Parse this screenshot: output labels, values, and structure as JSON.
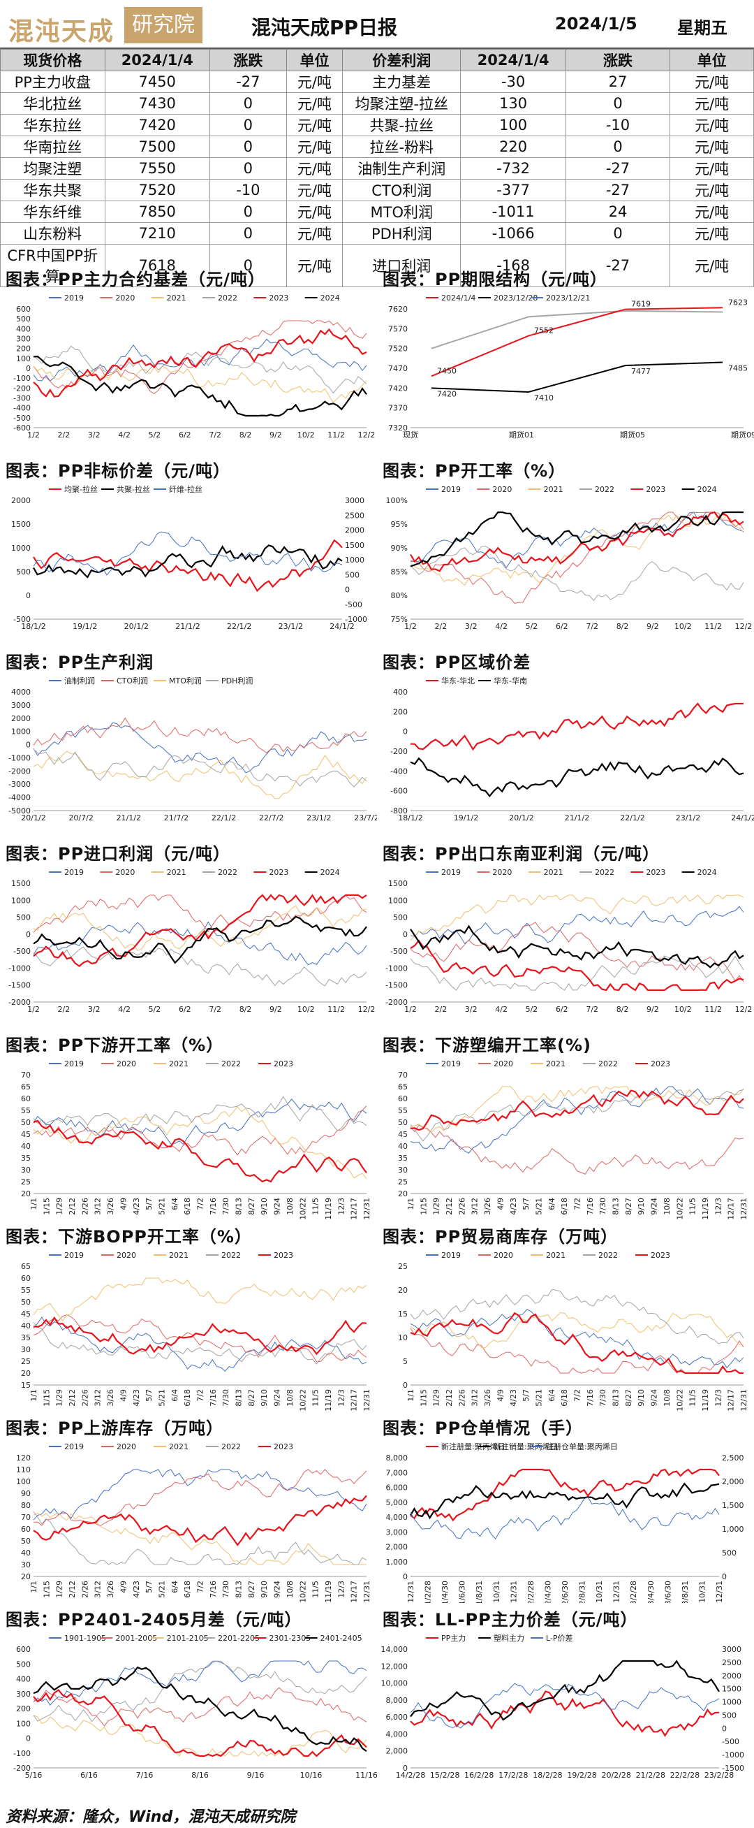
{
  "header": {
    "logo_text": "混沌天成",
    "logo_box": "研究院",
    "title": "混沌天成PP日报",
    "date": "2024/1/5",
    "weekday": "星期五"
  },
  "price_table": {
    "headers": [
      "现货价格",
      "2024/1/4",
      "涨跌",
      "单位",
      "价差利润",
      "2024/1/4",
      "涨跌",
      "单位"
    ],
    "rows": [
      [
        "PP主力收盘",
        "7450",
        "-27",
        "元/吨",
        "主力基差",
        "-30",
        "27",
        "元/吨"
      ],
      [
        "华北拉丝",
        "7430",
        "0",
        "元/吨",
        "均聚注塑-拉丝",
        "130",
        "0",
        "元/吨"
      ],
      [
        "华东拉丝",
        "7420",
        "0",
        "元/吨",
        "共聚-拉丝",
        "100",
        "-10",
        "元/吨"
      ],
      [
        "华南拉丝",
        "7500",
        "0",
        "元/吨",
        "拉丝-粉料",
        "220",
        "0",
        "元/吨"
      ],
      [
        "均聚注塑",
        "7550",
        "0",
        "元/吨",
        "油制生产利润",
        "-732",
        "-27",
        "元/吨"
      ],
      [
        "华东共聚",
        "7520",
        "-10",
        "元/吨",
        "CTO利润",
        "-377",
        "-27",
        "元/吨"
      ],
      [
        "华东纤维",
        "7850",
        "0",
        "元/吨",
        "MTO利润",
        "-1011",
        "24",
        "元/吨"
      ],
      [
        "山东粉料",
        "7210",
        "0",
        "元/吨",
        "PDH利润",
        "-1066",
        "0",
        "元/吨"
      ],
      [
        "CFR中国PP折算",
        "7618",
        "0",
        "元/吨",
        "进口利润",
        "-168",
        "-27",
        "元/吨"
      ]
    ]
  },
  "panels": [
    {
      "title": "图表：PP主力合约基差（元/吨）",
      "legend": [
        "2019",
        "2020",
        "2021",
        "2022",
        "2023",
        "2024"
      ],
      "yticks": [
        "600",
        "500",
        "400",
        "300",
        "200",
        "100",
        "0",
        "-100",
        "-200",
        "-300",
        "-400",
        "-500",
        "-600"
      ],
      "xticks": [
        "1/2",
        "2/2",
        "3/2",
        "4/2",
        "5/2",
        "6/2",
        "7/2",
        "8/2",
        "9/2",
        "10/2",
        "11/2",
        "12/2"
      ]
    },
    {
      "title": "图表：PP期限结构（元/吨）",
      "legend": [
        "2024/1/4",
        "2023/12/28",
        "2023/12/21"
      ],
      "yticks": [
        "7620",
        "7570",
        "7520",
        "7470",
        "7420",
        "7370",
        "7320"
      ],
      "xticks": [
        "现货",
        "期货01",
        "期货05",
        "期货09"
      ],
      "labels": [
        "7450",
        "7552",
        "7619",
        "7623",
        "7420",
        "7410",
        "7477",
        "7485"
      ]
    },
    {
      "title": "图表：PP非标价差（元/吨）",
      "legend": [
        "均聚-拉丝",
        "共聚-拉丝",
        "纤维-拉丝"
      ],
      "yticks": [
        "2000",
        "1500",
        "1000",
        "500",
        "0",
        "-500"
      ],
      "y2ticks": [
        "3000",
        "2500",
        "2000",
        "1500",
        "1000",
        "500",
        "0",
        "-500",
        "-1000"
      ],
      "xticks": [
        "18/1/2",
        "19/1/2",
        "20/1/2",
        "21/1/2",
        "22/1/2",
        "23/1/2",
        "24/1/2"
      ]
    },
    {
      "title": "图表：PP开工率（%）",
      "legend": [
        "2019",
        "2020",
        "2021",
        "2022",
        "2023",
        "2024"
      ],
      "yticks": [
        "100%",
        "95%",
        "90%",
        "85%",
        "80%",
        "75%"
      ],
      "xticks": [
        "1/2",
        "2/2",
        "3/2",
        "4/2",
        "5/2",
        "6/2",
        "7/2",
        "8/2",
        "9/2",
        "10/2",
        "11/2",
        "12/2"
      ]
    },
    {
      "title": "图表：PP生产利润",
      "legend": [
        "油制利润",
        "CTO利润",
        "MTO利润",
        "PDH利润"
      ],
      "yticks": [
        "4000",
        "3000",
        "2000",
        "1000",
        "0",
        "-1000",
        "-2000",
        "-3000",
        "-4000",
        "-5000"
      ],
      "xticks": [
        "20/1/2",
        "20/7/2",
        "21/1/2",
        "21/7/2",
        "22/1/2",
        "22/7/2",
        "23/1/2",
        "23/7/2"
      ]
    },
    {
      "title": "图表：PP区域价差",
      "legend": [
        "华东-华北",
        "华东-华南"
      ],
      "yticks": [
        "400",
        "200",
        "0",
        "-200",
        "-400",
        "-600",
        "-800"
      ],
      "xticks": [
        "18/1/2",
        "19/1/2",
        "20/1/2",
        "21/1/2",
        "22/1/2",
        "23/1/2",
        "24/1/2"
      ]
    },
    {
      "title": "图表：PP进口利润（元/吨）",
      "legend": [
        "2019",
        "2020",
        "2021",
        "2022",
        "2023",
        "2024"
      ],
      "yticks": [
        "1500",
        "1000",
        "500",
        "0",
        "-500",
        "-1000",
        "-1500",
        "-2000"
      ],
      "xticks": [
        "1/2",
        "2/2",
        "3/2",
        "4/2",
        "5/2",
        "6/2",
        "7/2",
        "8/2",
        "9/2",
        "10/2",
        "11/2",
        "12/2"
      ]
    },
    {
      "title": "图表：PP出口东南亚利润（元/吨）",
      "legend": [
        "2019",
        "2020",
        "2021",
        "2022",
        "2023",
        "2024"
      ],
      "yticks": [
        "1500",
        "1000",
        "500",
        "0",
        "-500",
        "-1000",
        "-1500",
        "-2000"
      ],
      "xticks": [
        "1/2",
        "2/2",
        "3/2",
        "4/2",
        "5/2",
        "6/2",
        "7/2",
        "8/2",
        "9/2",
        "10/2",
        "11/2",
        "12/2"
      ]
    },
    {
      "title": "图表：PP下游开工率（%）",
      "legend": [
        "2019",
        "2020",
        "2021",
        "2022",
        "2023"
      ],
      "yticks": [
        "70",
        "65",
        "60",
        "55",
        "50",
        "45",
        "40",
        "35",
        "30",
        "25",
        "20"
      ],
      "xticks": [
        "1/1",
        "1/15",
        "1/29",
        "2/12",
        "2/26",
        "3/12",
        "3/26",
        "4/9",
        "4/23",
        "5/7",
        "5/21",
        "6/4",
        "6/18",
        "7/2",
        "7/16",
        "7/30",
        "8/13",
        "8/27",
        "9/10",
        "9/24",
        "10/8",
        "10/22",
        "11/5",
        "11/19",
        "12/3",
        "12/17",
        "12/31"
      ]
    },
    {
      "title": "图表：下游塑编开工率(%)",
      "legend": [
        "2019",
        "2020",
        "2021",
        "2022",
        "2023"
      ],
      "yticks": [
        "70",
        "65",
        "60",
        "55",
        "50",
        "45",
        "40",
        "35",
        "30",
        "25",
        "20"
      ],
      "xticks": [
        "1/1",
        "1/15",
        "1/29",
        "2/12",
        "2/26",
        "3/12",
        "3/26",
        "4/9",
        "4/23",
        "5/7",
        "5/21",
        "6/4",
        "6/18",
        "7/2",
        "7/16",
        "7/30",
        "8/13",
        "8/27",
        "9/10",
        "9/24",
        "10/8",
        "10/22",
        "11/5",
        "11/19",
        "12/3",
        "12/17",
        "12/31"
      ]
    },
    {
      "title": "图表：下游BOPP开工率（%）",
      "legend": [
        "2019",
        "2020",
        "2021",
        "2022",
        "2023"
      ],
      "yticks": [
        "65",
        "60",
        "55",
        "50",
        "45",
        "40",
        "35",
        "30",
        "25",
        "20",
        "15"
      ],
      "xticks": [
        "1/1",
        "1/15",
        "1/29",
        "2/12",
        "2/26",
        "3/12",
        "3/26",
        "4/9",
        "4/23",
        "5/7",
        "5/21",
        "6/4",
        "6/18",
        "7/2",
        "7/16",
        "7/30",
        "8/13",
        "8/27",
        "9/10",
        "9/24",
        "10/8",
        "10/22",
        "11/5",
        "11/19",
        "12/3",
        "12/17",
        "12/31"
      ]
    },
    {
      "title": "图表：PP贸易商库存（万吨）",
      "legend": [
        "2019",
        "2020",
        "2021",
        "2022",
        "2023"
      ],
      "yticks": [
        "25",
        "20",
        "15",
        "10",
        "5",
        "0"
      ],
      "xticks": [
        "1/1",
        "1/15",
        "1/29",
        "2/12",
        "2/26",
        "3/12",
        "3/26",
        "4/9",
        "4/23",
        "5/7",
        "5/21",
        "6/4",
        "6/18",
        "7/2",
        "7/16",
        "7/30",
        "8/13",
        "8/27",
        "9/10",
        "9/24",
        "10/8",
        "10/22",
        "11/5",
        "11/19",
        "12/3",
        "12/17",
        "12/31"
      ]
    },
    {
      "title": "图表：PP上游库存（万吨）",
      "legend": [
        "2019",
        "2020",
        "2021",
        "2022",
        "2023"
      ],
      "yticks": [
        "120",
        "110",
        "100",
        "90",
        "80",
        "70",
        "60",
        "50",
        "40",
        "30",
        "20"
      ],
      "xticks": [
        "1/1",
        "1/15",
        "1/29",
        "2/12",
        "2/26",
        "3/12",
        "3/26",
        "4/9",
        "4/23",
        "5/7",
        "5/21",
        "6/4",
        "6/18",
        "7/2",
        "7/16",
        "7/30",
        "8/13",
        "8/27",
        "9/10",
        "9/24",
        "10/8",
        "10/22",
        "11/5",
        "11/19",
        "12/3",
        "12/17",
        "12/31"
      ]
    },
    {
      "title": "图表：PP仓单情况（手）",
      "legend": [
        "新注册量:聚丙烯日",
        "新注销量:聚丙烯日",
        "注册仓单量:聚丙烯日"
      ],
      "yticks": [
        "8,000",
        "7,000",
        "6,000",
        "5,000",
        "4,000",
        "3,000",
        "2,000",
        "1,000",
        "0"
      ],
      "y2ticks": [
        "2,500",
        "2,000",
        "1,500",
        "1,000",
        "500",
        "0"
      ],
      "xticks": [
        "20/12/31",
        "21/2/28",
        "21/4/30",
        "21/6/30",
        "21/8/31",
        "21/10/31",
        "21/12/31",
        "22/2/28",
        "22/4/30",
        "22/6/30",
        "22/8/31",
        "22/10/31",
        "22/12/31",
        "23/2/28",
        "23/4/30",
        "23/6/30",
        "23/8/31",
        "23/10/31",
        "23/12/31"
      ]
    },
    {
      "title": "图表：PP2401-2405月差（元/吨）",
      "legend": [
        "1901-1905",
        "2001-2005",
        "2101-2105",
        "2201-2205",
        "2301-2305",
        "2401-2405"
      ],
      "yticks": [
        "600",
        "500",
        "400",
        "300",
        "200",
        "100",
        "0",
        "-100",
        "-200"
      ],
      "xticks": [
        "5/16",
        "6/16",
        "7/16",
        "8/16",
        "9/16",
        "10/16",
        "11/16"
      ]
    },
    {
      "title": "图表：LL-PP主力价差（元/吨）",
      "legend": [
        "PP主力",
        "塑料主力",
        "L-P价差"
      ],
      "yticks": [
        "14,000",
        "12,000",
        "10,000",
        "8,000",
        "6,000",
        "4,000",
        "2,000",
        "0"
      ],
      "y2ticks": [
        "3000",
        "2500",
        "2000",
        "1500",
        "1000",
        "500",
        "0",
        "-500",
        "-1000",
        "-1500"
      ],
      "xticks": [
        "14/2/28",
        "15/2/28",
        "16/2/28",
        "17/2/28",
        "18/2/28",
        "19/2/28",
        "20/2/28",
        "21/2/28",
        "22/2/28",
        "23/2/28"
      ]
    }
  ],
  "footer": "资料来源：隆众，Wind，混沌天成研究院",
  "colors": {
    "red": "#e8141c",
    "black": "#000000",
    "blue": "#4472c4",
    "orange": "#f0a23c",
    "teal": "#4dbdb0",
    "grey": "#a5a5a5",
    "green": "#9bbb59",
    "pink": "#e06666"
  }
}
